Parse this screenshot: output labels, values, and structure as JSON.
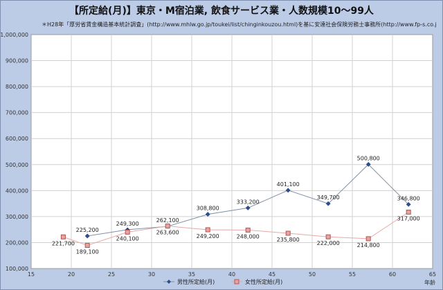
{
  "chart_data": {
    "type": "line",
    "title": "【所定給(月)】東京・M宿泊業, 飲食サービス業・人数規模10～99人",
    "subtitle": "＊H28年「厚労省賃金構造基本統計調査」(http://www.mhlw.go.jp/toukei/list/chinginkouzou.html)を基に安達社会保険労務士事務所(http://www.fp-s.co.jp)が作成",
    "xlabel": "年齢",
    "ylabel": "",
    "xlim": [
      15,
      65
    ],
    "ylim": [
      100000,
      1000000
    ],
    "x_ticks": [
      "15",
      "20",
      "25",
      "30",
      "35",
      "40",
      "45",
      "50",
      "55",
      "60",
      "65"
    ],
    "y_ticks": [
      "100,000",
      "200,000",
      "300,000",
      "400,000",
      "500,000",
      "600,000",
      "700,000",
      "800,000",
      "900,000",
      "1,000,000"
    ],
    "grid": true,
    "legend_position": "bottom",
    "series": [
      {
        "name": "男性所定給(月)",
        "color": "#2e4d8c",
        "marker": "diamond",
        "points": [
          {
            "x": 22,
            "y": 225200,
            "label": "225,200"
          },
          {
            "x": 27,
            "y": 249300,
            "label": "249,300"
          },
          {
            "x": 32,
            "y": 262100,
            "label": "262,100"
          },
          {
            "x": 37,
            "y": 308800,
            "label": "308,800"
          },
          {
            "x": 42,
            "y": 333200,
            "label": "333,200"
          },
          {
            "x": 47,
            "y": 401100,
            "label": "401,100"
          },
          {
            "x": 52,
            "y": 349700,
            "label": "349,700"
          },
          {
            "x": 57,
            "y": 500800,
            "label": "500,800"
          },
          {
            "x": 62,
            "y": 346800,
            "label": "346,800"
          }
        ]
      },
      {
        "name": "女性所定給(月)",
        "color": "#c0504d",
        "marker": "square",
        "points": [
          {
            "x": 19,
            "y": 221700,
            "label": "221,700"
          },
          {
            "x": 22,
            "y": 189100,
            "label": "189,100"
          },
          {
            "x": 27,
            "y": 240100,
            "label": "240,100"
          },
          {
            "x": 32,
            "y": 263600,
            "label": "263,600"
          },
          {
            "x": 37,
            "y": 249200,
            "label": "249,200"
          },
          {
            "x": 42,
            "y": 248000,
            "label": "248,000"
          },
          {
            "x": 47,
            "y": 235800,
            "label": "235,800"
          },
          {
            "x": 52,
            "y": 222000,
            "label": "222,000"
          },
          {
            "x": 57,
            "y": 214800,
            "label": "214,800"
          },
          {
            "x": 62,
            "y": 317000,
            "label": "317,000"
          }
        ]
      }
    ]
  }
}
